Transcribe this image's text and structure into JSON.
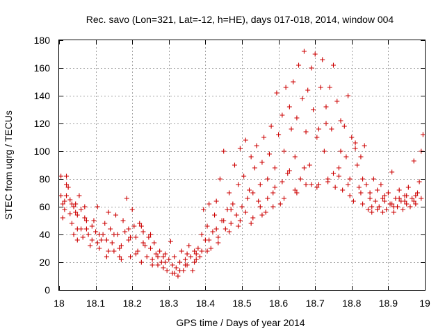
{
  "chart_data": {
    "type": "scatter",
    "title": "Rec. savo (Lon=321, Lat=-12, h=HE), days 017-018, 2014, window 004",
    "xlabel": "GPS time / Days of year 2014",
    "ylabel": "STEC from uqrg / TECUs",
    "xlim": [
      18,
      19
    ],
    "ylim": [
      0,
      180
    ],
    "xticks": [
      18,
      18.1,
      18.2,
      18.3,
      18.4,
      18.5,
      18.6,
      18.7,
      18.8,
      18.9,
      19
    ],
    "xtick_labels": [
      "18",
      "18.1",
      "18.2",
      "18.3",
      "18.4",
      "18.5",
      "18.6",
      "18.7",
      "18.8",
      "18.9",
      "19"
    ],
    "yticks": [
      0,
      20,
      40,
      60,
      80,
      100,
      120,
      140,
      160,
      180
    ],
    "ytick_labels": [
      "0",
      "20",
      "40",
      "60",
      "80",
      "100",
      "120",
      "140",
      "160",
      "180"
    ],
    "grid": true,
    "marker": "+",
    "color": "#cc0000",
    "points": [
      [
        18.005,
        82
      ],
      [
        18.005,
        68
      ],
      [
        18.01,
        62
      ],
      [
        18.01,
        52
      ],
      [
        18.015,
        58
      ],
      [
        18.02,
        82
      ],
      [
        18.02,
        76
      ],
      [
        18.025,
        74
      ],
      [
        18.03,
        65
      ],
      [
        18.03,
        55
      ],
      [
        18.035,
        48
      ],
      [
        18.04,
        60
      ],
      [
        18.04,
        40
      ],
      [
        18.045,
        62
      ],
      [
        18.05,
        54
      ],
      [
        18.05,
        36
      ],
      [
        18.055,
        68
      ],
      [
        18.06,
        58
      ],
      [
        18.06,
        44
      ],
      [
        18.065,
        38
      ],
      [
        18.07,
        60
      ],
      [
        18.075,
        50
      ],
      [
        18.08,
        40
      ],
      [
        18.085,
        32
      ],
      [
        18.09,
        36
      ],
      [
        18.095,
        50
      ],
      [
        18.1,
        42
      ],
      [
        18.105,
        60
      ],
      [
        18.11,
        30
      ],
      [
        18.115,
        36
      ],
      [
        18.12,
        40
      ],
      [
        18.125,
        48
      ],
      [
        18.13,
        24
      ],
      [
        18.135,
        56
      ],
      [
        18.14,
        44
      ],
      [
        18.145,
        34
      ],
      [
        18.15,
        28
      ],
      [
        18.155,
        54
      ],
      [
        18.16,
        40
      ],
      [
        18.165,
        30
      ],
      [
        18.17,
        22
      ],
      [
        18.175,
        50
      ],
      [
        18.18,
        42
      ],
      [
        18.185,
        66
      ],
      [
        18.19,
        36
      ],
      [
        18.195,
        24
      ],
      [
        18.2,
        58
      ],
      [
        18.205,
        46
      ],
      [
        18.21,
        38
      ],
      [
        18.215,
        28
      ],
      [
        18.22,
        48
      ],
      [
        18.225,
        20
      ],
      [
        18.23,
        42
      ],
      [
        18.235,
        32
      ],
      [
        18.24,
        24
      ],
      [
        18.245,
        38
      ],
      [
        18.25,
        30
      ],
      [
        18.255,
        22
      ],
      [
        18.26,
        34
      ],
      [
        18.265,
        26
      ],
      [
        18.27,
        18
      ],
      [
        18.275,
        28
      ],
      [
        18.28,
        20
      ],
      [
        18.285,
        16
      ],
      [
        18.29,
        26
      ],
      [
        18.295,
        14
      ],
      [
        18.3,
        22
      ],
      [
        18.305,
        35
      ],
      [
        18.31,
        12
      ],
      [
        18.315,
        24
      ],
      [
        18.32,
        16
      ],
      [
        18.325,
        10
      ],
      [
        18.33,
        20
      ],
      [
        18.335,
        28
      ],
      [
        18.34,
        14
      ],
      [
        18.345,
        22
      ],
      [
        18.35,
        18
      ],
      [
        18.355,
        32
      ],
      [
        18.36,
        24
      ],
      [
        18.365,
        14
      ],
      [
        18.37,
        20
      ],
      [
        18.375,
        26
      ],
      [
        18.38,
        30
      ],
      [
        18.385,
        24
      ],
      [
        18.39,
        40
      ],
      [
        18.395,
        58
      ],
      [
        18.4,
        36
      ],
      [
        18.405,
        46
      ],
      [
        18.41,
        62
      ],
      [
        18.415,
        30
      ],
      [
        18.42,
        42
      ],
      [
        18.425,
        54
      ],
      [
        18.43,
        64
      ],
      [
        18.435,
        38
      ],
      [
        18.44,
        80
      ],
      [
        18.445,
        50
      ],
      [
        18.45,
        100
      ],
      [
        18.455,
        44
      ],
      [
        18.46,
        58
      ],
      [
        18.465,
        70
      ],
      [
        18.47,
        48
      ],
      [
        18.475,
        62
      ],
      [
        18.48,
        90
      ],
      [
        18.485,
        54
      ],
      [
        18.49,
        76
      ],
      [
        18.495,
        102
      ],
      [
        18.5,
        60
      ],
      [
        18.505,
        82
      ],
      [
        18.51,
        108
      ],
      [
        18.515,
        66
      ],
      [
        18.52,
        72
      ],
      [
        18.525,
        96
      ],
      [
        18.53,
        52
      ],
      [
        18.535,
        88
      ],
      [
        18.54,
        104
      ],
      [
        18.545,
        64
      ],
      [
        18.55,
        76
      ],
      [
        18.555,
        92
      ],
      [
        18.56,
        110
      ],
      [
        18.565,
        56
      ],
      [
        18.57,
        80
      ],
      [
        18.575,
        98
      ],
      [
        18.58,
        118
      ],
      [
        18.585,
        70
      ],
      [
        18.59,
        88
      ],
      [
        18.595,
        142
      ],
      [
        18.6,
        112
      ],
      [
        18.605,
        62
      ],
      [
        18.61,
        126
      ],
      [
        18.615,
        100
      ],
      [
        18.62,
        146
      ],
      [
        18.625,
        84
      ],
      [
        18.63,
        132
      ],
      [
        18.635,
        116
      ],
      [
        18.64,
        150
      ],
      [
        18.645,
        96
      ],
      [
        18.65,
        124
      ],
      [
        18.655,
        162
      ],
      [
        18.66,
        80
      ],
      [
        18.665,
        138
      ],
      [
        18.67,
        172
      ],
      [
        18.675,
        114
      ],
      [
        18.68,
        144
      ],
      [
        18.685,
        90
      ],
      [
        18.69,
        160
      ],
      [
        18.695,
        130
      ],
      [
        18.7,
        170
      ],
      [
        18.705,
        110
      ],
      [
        18.71,
        76
      ],
      [
        18.715,
        146
      ],
      [
        18.72,
        166
      ],
      [
        18.725,
        100
      ],
      [
        18.73,
        132
      ],
      [
        18.735,
        80
      ],
      [
        18.74,
        146
      ],
      [
        18.745,
        116
      ],
      [
        18.75,
        162
      ],
      [
        18.755,
        74
      ],
      [
        18.76,
        136
      ],
      [
        18.765,
        88
      ],
      [
        18.77,
        122
      ],
      [
        18.775,
        72
      ],
      [
        18.78,
        118
      ],
      [
        18.785,
        96
      ],
      [
        18.79,
        140
      ],
      [
        18.795,
        80
      ],
      [
        18.8,
        110
      ],
      [
        18.805,
        64
      ],
      [
        18.81,
        102
      ],
      [
        18.815,
        90
      ],
      [
        18.82,
        74
      ],
      [
        18.825,
        96
      ],
      [
        18.83,
        62
      ],
      [
        18.835,
        104
      ],
      [
        18.84,
        76
      ],
      [
        18.845,
        58
      ],
      [
        18.85,
        70
      ],
      [
        18.855,
        56
      ],
      [
        18.86,
        80
      ],
      [
        18.865,
        64
      ],
      [
        18.87,
        72
      ],
      [
        18.875,
        60
      ],
      [
        18.88,
        76
      ],
      [
        18.885,
        56
      ],
      [
        18.89,
        68
      ],
      [
        18.895,
        58
      ],
      [
        18.9,
        70
      ],
      [
        18.905,
        62
      ],
      [
        18.91,
        85
      ],
      [
        18.915,
        56
      ],
      [
        18.92,
        66
      ],
      [
        18.925,
        60
      ],
      [
        18.93,
        72
      ],
      [
        18.935,
        64
      ],
      [
        18.94,
        58
      ],
      [
        18.945,
        68
      ],
      [
        18.95,
        62
      ],
      [
        18.955,
        74
      ],
      [
        18.96,
        60
      ],
      [
        18.965,
        66
      ],
      [
        18.97,
        93
      ],
      [
        18.975,
        62
      ],
      [
        18.98,
        70
      ],
      [
        18.985,
        78
      ],
      [
        18.99,
        100
      ],
      [
        18.995,
        112
      ],
      [
        18.02,
        68
      ],
      [
        18.035,
        62
      ],
      [
        18.05,
        44
      ],
      [
        18.07,
        52
      ],
      [
        18.09,
        46
      ],
      [
        18.11,
        40
      ],
      [
        18.13,
        36
      ],
      [
        18.15,
        40
      ],
      [
        18.17,
        32
      ],
      [
        18.19,
        44
      ],
      [
        18.21,
        26
      ],
      [
        18.23,
        34
      ],
      [
        18.25,
        40
      ],
      [
        18.27,
        24
      ],
      [
        18.29,
        20
      ],
      [
        18.31,
        18
      ],
      [
        18.33,
        14
      ],
      [
        18.35,
        26
      ],
      [
        18.37,
        28
      ],
      [
        18.39,
        28
      ],
      [
        18.41,
        36
      ],
      [
        18.43,
        44
      ],
      [
        18.45,
        50
      ],
      [
        18.47,
        58
      ],
      [
        18.49,
        46
      ],
      [
        18.51,
        56
      ],
      [
        18.53,
        70
      ],
      [
        18.55,
        60
      ],
      [
        18.57,
        66
      ],
      [
        18.59,
        74
      ],
      [
        18.61,
        78
      ],
      [
        18.63,
        86
      ],
      [
        18.65,
        70
      ],
      [
        18.67,
        88
      ],
      [
        18.69,
        76
      ],
      [
        18.71,
        116
      ],
      [
        18.73,
        120
      ],
      [
        18.75,
        84
      ],
      [
        18.77,
        100
      ],
      [
        18.79,
        76
      ],
      [
        18.81,
        106
      ],
      [
        18.83,
        80
      ],
      [
        18.85,
        66
      ],
      [
        18.87,
        58
      ],
      [
        18.89,
        64
      ],
      [
        18.91,
        62
      ],
      [
        18.93,
        66
      ],
      [
        18.95,
        68
      ],
      [
        18.97,
        64
      ],
      [
        18.99,
        66
      ],
      [
        18.015,
        64
      ],
      [
        18.045,
        56
      ],
      [
        18.075,
        44
      ],
      [
        18.105,
        34
      ],
      [
        18.135,
        28
      ],
      [
        18.165,
        24
      ],
      [
        18.195,
        38
      ],
      [
        18.225,
        46
      ],
      [
        18.255,
        18
      ],
      [
        18.285,
        24
      ],
      [
        18.315,
        12
      ],
      [
        18.345,
        18
      ],
      [
        18.375,
        22
      ],
      [
        18.405,
        28
      ],
      [
        18.435,
        34
      ],
      [
        18.465,
        42
      ],
      [
        18.495,
        50
      ],
      [
        18.525,
        48
      ],
      [
        18.555,
        54
      ],
      [
        18.585,
        60
      ],
      [
        18.615,
        66
      ],
      [
        18.645,
        72
      ],
      [
        18.675,
        76
      ],
      [
        18.705,
        74
      ],
      [
        18.735,
        78
      ],
      [
        18.765,
        82
      ],
      [
        18.795,
        68
      ],
      [
        18.825,
        70
      ],
      [
        18.855,
        60
      ],
      [
        18.885,
        66
      ],
      [
        18.915,
        60
      ],
      [
        18.945,
        64
      ],
      [
        18.975,
        68
      ]
    ]
  }
}
